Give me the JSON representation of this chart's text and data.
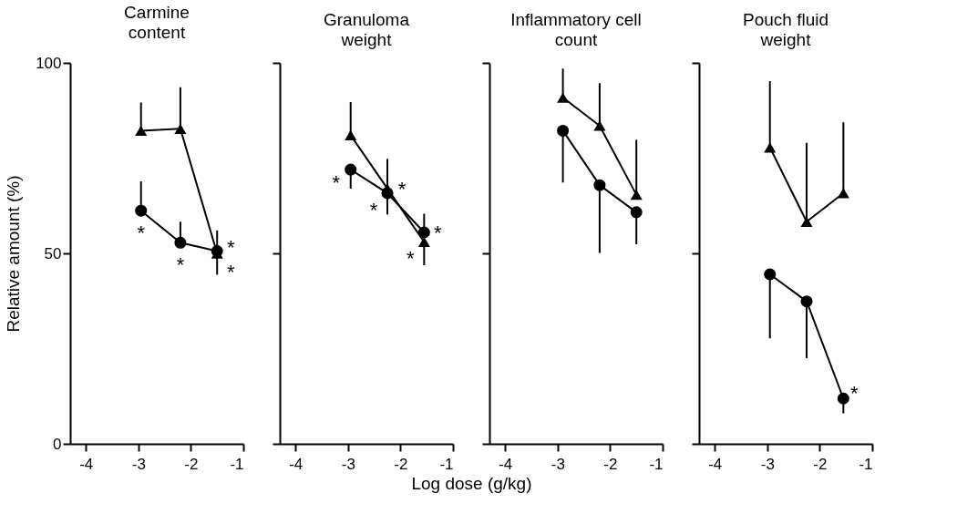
{
  "chart_data": [
    {
      "type": "line",
      "title": "Carmine\ncontent",
      "ylabel": "Relative amount (%)",
      "xlim": [
        -4.3,
        -1
      ],
      "xticks": [
        -4,
        -3,
        -2,
        -1
      ],
      "ylim": [
        0,
        100
      ],
      "yticks": [
        0,
        50,
        100
      ],
      "grid": false,
      "series": [
        {
          "color": "#000000",
          "marker": "triangle",
          "x": [
            -2.95,
            -2.2,
            -1.5
          ],
          "values": [
            82.2,
            82.7,
            50
          ],
          "errors": [
            [
              82.2,
              89.6
            ],
            [
              82.7,
              93.6
            ],
            [
              44.4,
              50
            ]
          ]
        },
        {
          "color": "#000000",
          "marker": "circle",
          "x": [
            -2.95,
            -2.2,
            -1.5
          ],
          "values": [
            61.2,
            52.8,
            50.6
          ],
          "errors": [
            [
              61.2,
              68.9
            ],
            [
              52.8,
              58.3
            ],
            [
              50.6,
              56
            ]
          ]
        }
      ],
      "annotations": [
        {
          "text": "*",
          "x": -2.95,
          "y": 61.2
        },
        {
          "text": "*",
          "x": -2.2,
          "y": 52.8
        },
        {
          "text": "*",
          "x": -1.5,
          "y": 50.6
        },
        {
          "text": "*",
          "x": -1.5,
          "y": 50
        }
      ]
    },
    {
      "type": "line",
      "title": "Granuloma\nweight",
      "xlabel": "Log dose (g/kg)",
      "xlim": [
        -4.3,
        -1
      ],
      "xticks": [
        -4,
        -3,
        -2,
        -1
      ],
      "ylim": [
        0,
        100
      ],
      "yticks": [
        0,
        50,
        100
      ],
      "grid": false,
      "tick_labels": "x",
      "series": [
        {
          "color": "#000000",
          "marker": "triangle",
          "x": [
            -2.95,
            -2.25,
            -1.55
          ],
          "values": [
            81,
            67,
            53
          ],
          "errors": [
            [
              81,
              89.7
            ],
            [
              67,
              74.8
            ],
            [
              46.9,
              53
            ]
          ]
        },
        {
          "color": "#000000",
          "marker": "circle",
          "x": [
            -2.95,
            -2.25,
            -1.55
          ],
          "values": [
            72,
            65.8,
            55.5
          ],
          "errors": [
            [
              67,
              72
            ],
            [
              60.2,
              65.8
            ],
            [
              55.5,
              60.4
            ]
          ]
        }
      ],
      "annotations": [
        {
          "text": "*",
          "x": -2.95,
          "y": 72
        },
        {
          "text": "*",
          "x": -2.25,
          "y": 67
        },
        {
          "text": "*",
          "x": -2.25,
          "y": 65.8
        },
        {
          "text": "*",
          "x": -1.55,
          "y": 55.5
        },
        {
          "text": "*",
          "x": -1.55,
          "y": 53
        }
      ]
    },
    {
      "type": "line",
      "title": "Inflammatory cell\ncount",
      "xlim": [
        -4.3,
        -1
      ],
      "xticks": [
        -4,
        -3,
        -2,
        -1
      ],
      "ylim": [
        0,
        100
      ],
      "yticks": [
        0,
        50,
        100
      ],
      "grid": false,
      "tick_labels": "x",
      "series": [
        {
          "color": "#000000",
          "marker": "triangle",
          "x": [
            -2.9,
            -2.2,
            -1.5
          ],
          "values": [
            90.9,
            83.5,
            65.4
          ],
          "errors": [
            [
              90.9,
              98.5
            ],
            [
              83.5,
              94.7
            ],
            [
              65.4,
              79.8
            ]
          ]
        },
        {
          "color": "#000000",
          "marker": "circle",
          "x": [
            -2.9,
            -2.2,
            -1.5
          ],
          "values": [
            82.2,
            67.9,
            60.8
          ],
          "errors": [
            [
              68.6,
              82.2
            ],
            [
              50.1,
              67.9
            ],
            [
              52.4,
              60.8
            ]
          ]
        }
      ]
    },
    {
      "type": "line",
      "title": "Pouch fluid\nweight",
      "xlim": [
        -4.3,
        -1
      ],
      "xticks": [
        -4,
        -3,
        -2,
        -1
      ],
      "ylim": [
        0,
        100
      ],
      "yticks": [
        0,
        50,
        100
      ],
      "grid": false,
      "tick_labels": "x",
      "series": [
        {
          "color": "#000000",
          "marker": "triangle",
          "x": [
            -2.95,
            -2.25,
            -1.55
          ],
          "values": [
            77.8,
            58.3,
            65.8
          ],
          "errors": [
            [
              77.8,
              95.2
            ],
            [
              58.3,
              79
            ],
            [
              65.8,
              84.4
            ]
          ]
        },
        {
          "color": "#000000",
          "marker": "circle",
          "x": [
            -2.95,
            -2.25,
            -1.55
          ],
          "values": [
            44.5,
            37.4,
            11.9
          ],
          "errors": [
            [
              27.7,
              44.5
            ],
            [
              22.5,
              37.4
            ],
            [
              8,
              11.9
            ]
          ]
        }
      ],
      "annotations": [
        {
          "text": "*",
          "x": -1.55,
          "y": 11.9
        }
      ]
    }
  ]
}
